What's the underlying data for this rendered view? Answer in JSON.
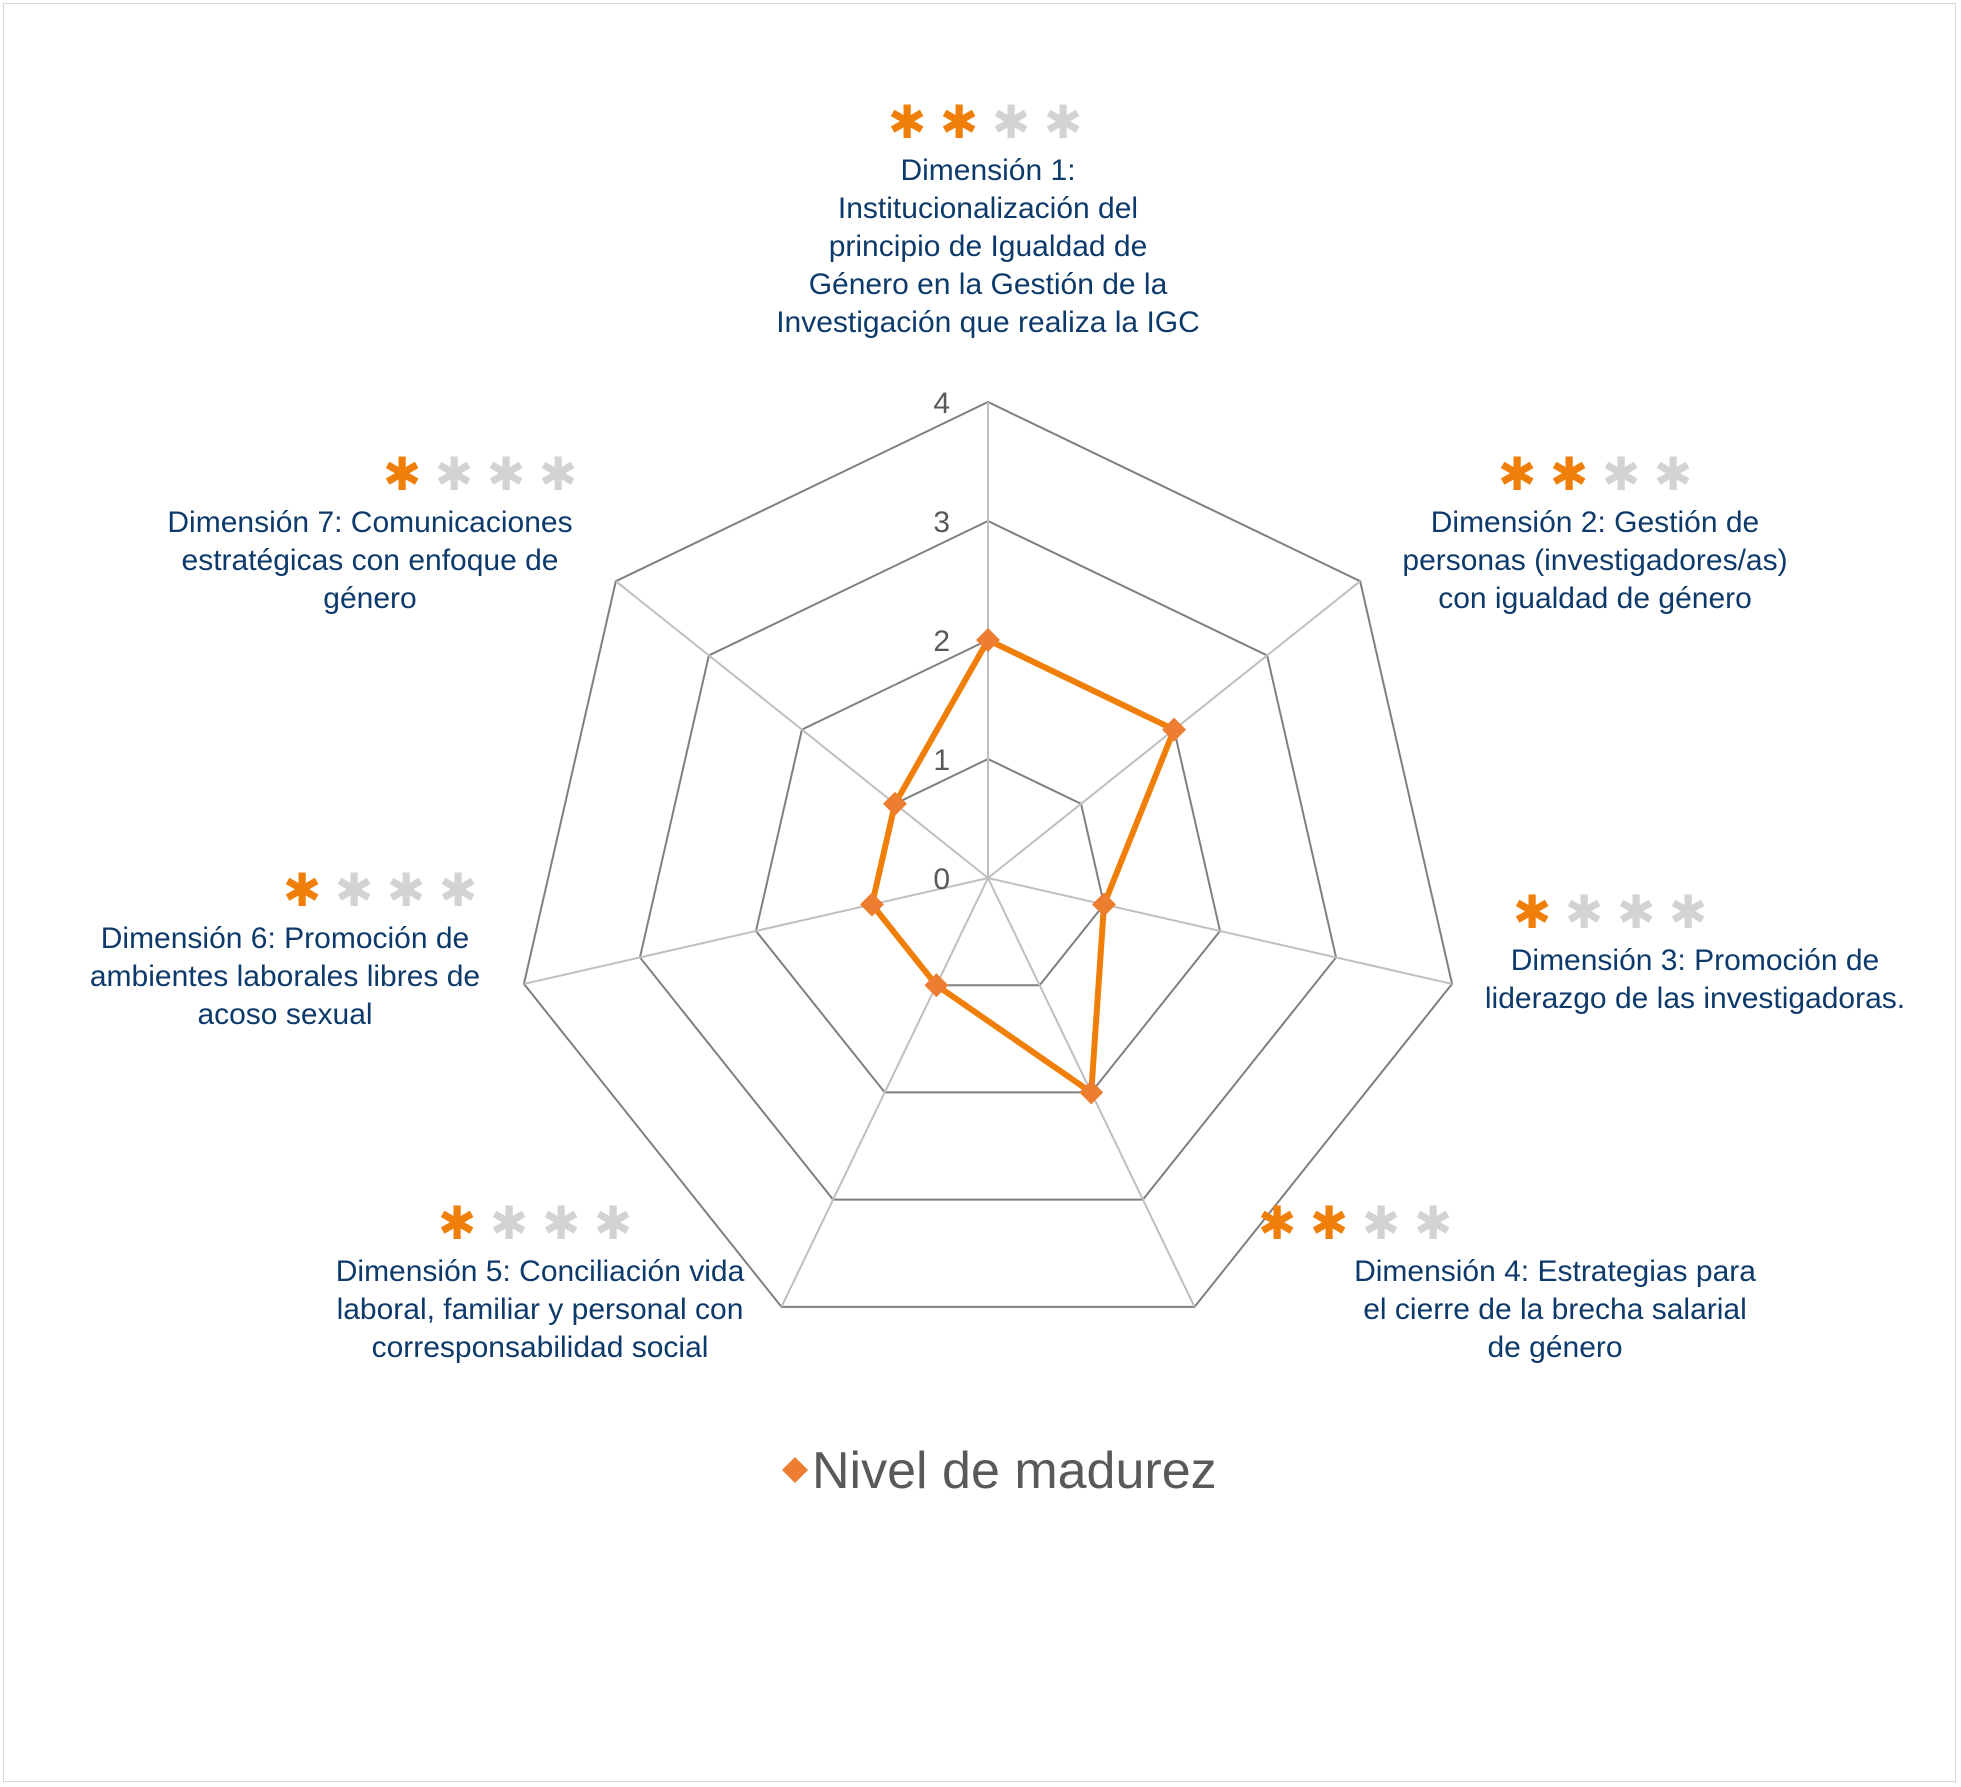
{
  "chart_data": {
    "type": "radar",
    "categories": [
      "Dimensión 1: Institucionalización del principio de Igualdad de Género en la Gestión de la Investigación que realiza la IGC",
      "Dimensión 2: Gestión de personas (investigadores/as) con igualdad de género",
      "Dimensión 3: Promoción de liderazgo de las investigadoras.",
      "Dimensión 4: Estrategias para el cierre de la brecha salarial de género",
      "Dimensión 5: Conciliación vida laboral, familiar y personal con corresponsabilidad social",
      "Dimensión 6: Promoción de ambientes laborales libres de acoso sexual",
      "Dimensión 7: Comunicaciones estratégicas con enfoque de género"
    ],
    "series": [
      {
        "name": "Nivel de madurez",
        "values": [
          2,
          2,
          1,
          2,
          1,
          1,
          1
        ],
        "color": "#f07f09"
      }
    ],
    "rlim": [
      0,
      4
    ],
    "ticks": [
      "0",
      "1",
      "2",
      "3",
      "4"
    ],
    "legend": "bottom",
    "stars_filled": [
      2,
      2,
      1,
      2,
      1,
      1,
      1
    ],
    "stars_total": 4,
    "label_lines": [
      [
        "Dimensión 1:",
        "Institucionalización del",
        "principio de Igualdad de",
        "Género en la Gestión de la",
        "Investigación que realiza la IGC"
      ],
      [
        "Dimensión 2: Gestión de",
        "personas (investigadores/as)",
        "con igualdad de género"
      ],
      [
        "Dimensión 3: Promoción de",
        "liderazgo de las investigadoras."
      ],
      [
        "Dimensión 4: Estrategias para",
        "el cierre de la brecha salarial",
        "de género"
      ],
      [
        "Dimensión 5: Conciliación vida",
        "laboral, familiar y personal con",
        "corresponsabilidad social"
      ],
      [
        "Dimensión 6: Promoción de",
        "ambientes laborales libres de",
        "acoso sexual"
      ],
      [
        "Dimensión 7: Comunicaciones",
        "estratégicas con enfoque de",
        "género"
      ]
    ],
    "colors": {
      "series": "#f07f09",
      "marker": "#ed7d31",
      "star_on": "#f07f09",
      "star_off": "#d3d3d3",
      "label": "#0d3a6b",
      "grid_dark": "#7f7f7f",
      "grid_light": "#bfbfbf",
      "tick": "#595959"
    },
    "icons": {
      "rating": "asterisk-star-icon",
      "legend_marker": "diamond-marker-icon"
    }
  }
}
